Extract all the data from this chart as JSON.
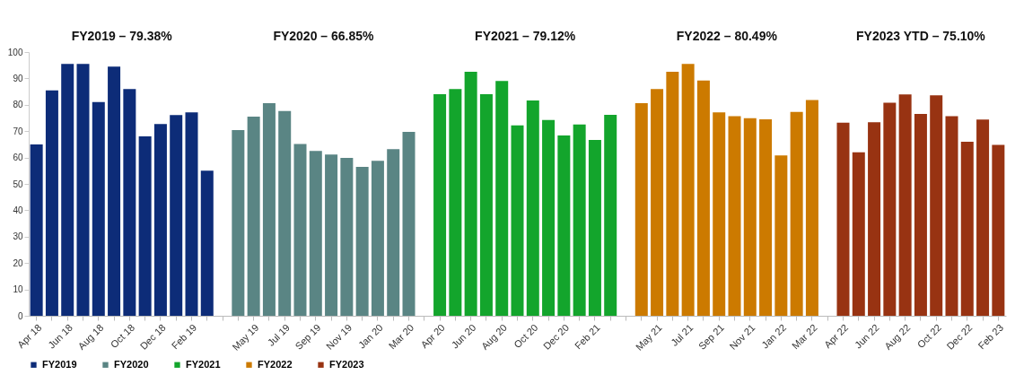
{
  "chart_data": {
    "type": "bar",
    "categories": [
      "Apr 18",
      null,
      "Jun 18",
      null,
      "Aug 18",
      null,
      "Oct 18",
      null,
      "Dec 18",
      null,
      "Feb 19",
      null,
      null,
      null,
      "May 19",
      null,
      "Jul 19",
      null,
      "Sep 19",
      null,
      "Nov 19",
      null,
      "Jan 20",
      null,
      "Mar 20",
      null,
      "Apr 20",
      null,
      "Jun 20",
      null,
      "Aug 20",
      null,
      "Oct 20",
      null,
      "Dec 20",
      null,
      "Feb 21",
      null,
      null,
      null,
      "May 21",
      null,
      "Jul 21",
      null,
      "Sep 21",
      null,
      "Nov 21",
      null,
      "Jan 22",
      null,
      "Mar 22",
      null,
      "Apr 22",
      null,
      "Jun 22",
      null,
      "Aug 22",
      null,
      "Oct 22",
      null,
      "Dec 22",
      null,
      "Feb 23"
    ],
    "series": [
      {
        "name": "FY2019",
        "color": "#0d2c78",
        "values": [
          65,
          85.5,
          95.5,
          95.5,
          81,
          94.5,
          86,
          68,
          72.7,
          76.1,
          77.1,
          55,
          null,
          null,
          null,
          null,
          null,
          null,
          null,
          null,
          null,
          null,
          null,
          null,
          null,
          null,
          null,
          null,
          null,
          null,
          null,
          null,
          null,
          null,
          null,
          null,
          null,
          null,
          null,
          null,
          null,
          null,
          null,
          null,
          null,
          null,
          null,
          null,
          null,
          null,
          null,
          null,
          null,
          null,
          null,
          null,
          null,
          null,
          null,
          null,
          null,
          null,
          null
        ]
      },
      {
        "name": "FY2020",
        "color": "#5a8584",
        "values": [
          null,
          null,
          null,
          null,
          null,
          null,
          null,
          null,
          null,
          null,
          null,
          null,
          null,
          70.4,
          75.5,
          80.6,
          77.6,
          65.1,
          62.5,
          61.1,
          59.9,
          56.5,
          58.8,
          63.2,
          69.7,
          null,
          null,
          null,
          null,
          null,
          null,
          null,
          null,
          null,
          null,
          null,
          null,
          null,
          null,
          null,
          null,
          null,
          null,
          null,
          null,
          null,
          null,
          null,
          null,
          null,
          null,
          null,
          null,
          null,
          null,
          null,
          null,
          null,
          null,
          null,
          null,
          null,
          null
        ]
      },
      {
        "name": "FY2021",
        "color": "#13a52c",
        "values": [
          null,
          null,
          null,
          null,
          null,
          null,
          null,
          null,
          null,
          null,
          null,
          null,
          null,
          null,
          null,
          null,
          null,
          null,
          null,
          null,
          null,
          null,
          null,
          null,
          null,
          null,
          84,
          86,
          92.5,
          84,
          89,
          72.2,
          81.6,
          74.2,
          68.4,
          72.5,
          66.7,
          76.2,
          null,
          null,
          null,
          null,
          null,
          null,
          null,
          null,
          null,
          null,
          null,
          null,
          null,
          null,
          null,
          null,
          null,
          null,
          null,
          null,
          null,
          null,
          null,
          null,
          null
        ]
      },
      {
        "name": "FY2022",
        "color": "#cc7a00",
        "values": [
          null,
          null,
          null,
          null,
          null,
          null,
          null,
          null,
          null,
          null,
          null,
          null,
          null,
          null,
          null,
          null,
          null,
          null,
          null,
          null,
          null,
          null,
          null,
          null,
          null,
          null,
          null,
          null,
          null,
          null,
          null,
          null,
          null,
          null,
          null,
          null,
          null,
          null,
          null,
          80.6,
          86,
          92.5,
          95.5,
          89.2,
          77.1,
          75.7,
          74.9,
          74.5,
          60.8,
          77.3,
          81.8,
          null,
          null,
          null,
          null,
          null,
          null,
          null,
          null,
          null,
          null,
          null,
          null
        ]
      },
      {
        "name": "FY2023",
        "color": "#983312",
        "values": [
          null,
          null,
          null,
          null,
          null,
          null,
          null,
          null,
          null,
          null,
          null,
          null,
          null,
          null,
          null,
          null,
          null,
          null,
          null,
          null,
          null,
          null,
          null,
          null,
          null,
          null,
          null,
          null,
          null,
          null,
          null,
          null,
          null,
          null,
          null,
          null,
          null,
          null,
          null,
          null,
          null,
          null,
          null,
          null,
          null,
          null,
          null,
          null,
          null,
          null,
          null,
          null,
          73.2,
          62,
          73.4,
          80.8,
          83.9,
          76.5,
          83.6,
          75.7,
          66,
          74.4,
          64.8
        ]
      }
    ],
    "annotations": [
      "FY2019 – 79.38%",
      "FY2020 – 66.85%",
      "FY2021 – 79.12%",
      "FY2022 – 80.49%",
      "FY2023 YTD – 75.10%"
    ],
    "ylim": [
      0,
      100
    ],
    "yticks": [
      0,
      10,
      20,
      30,
      40,
      50,
      60,
      70,
      80,
      90,
      100
    ],
    "grid": false,
    "legend": "bottom"
  }
}
